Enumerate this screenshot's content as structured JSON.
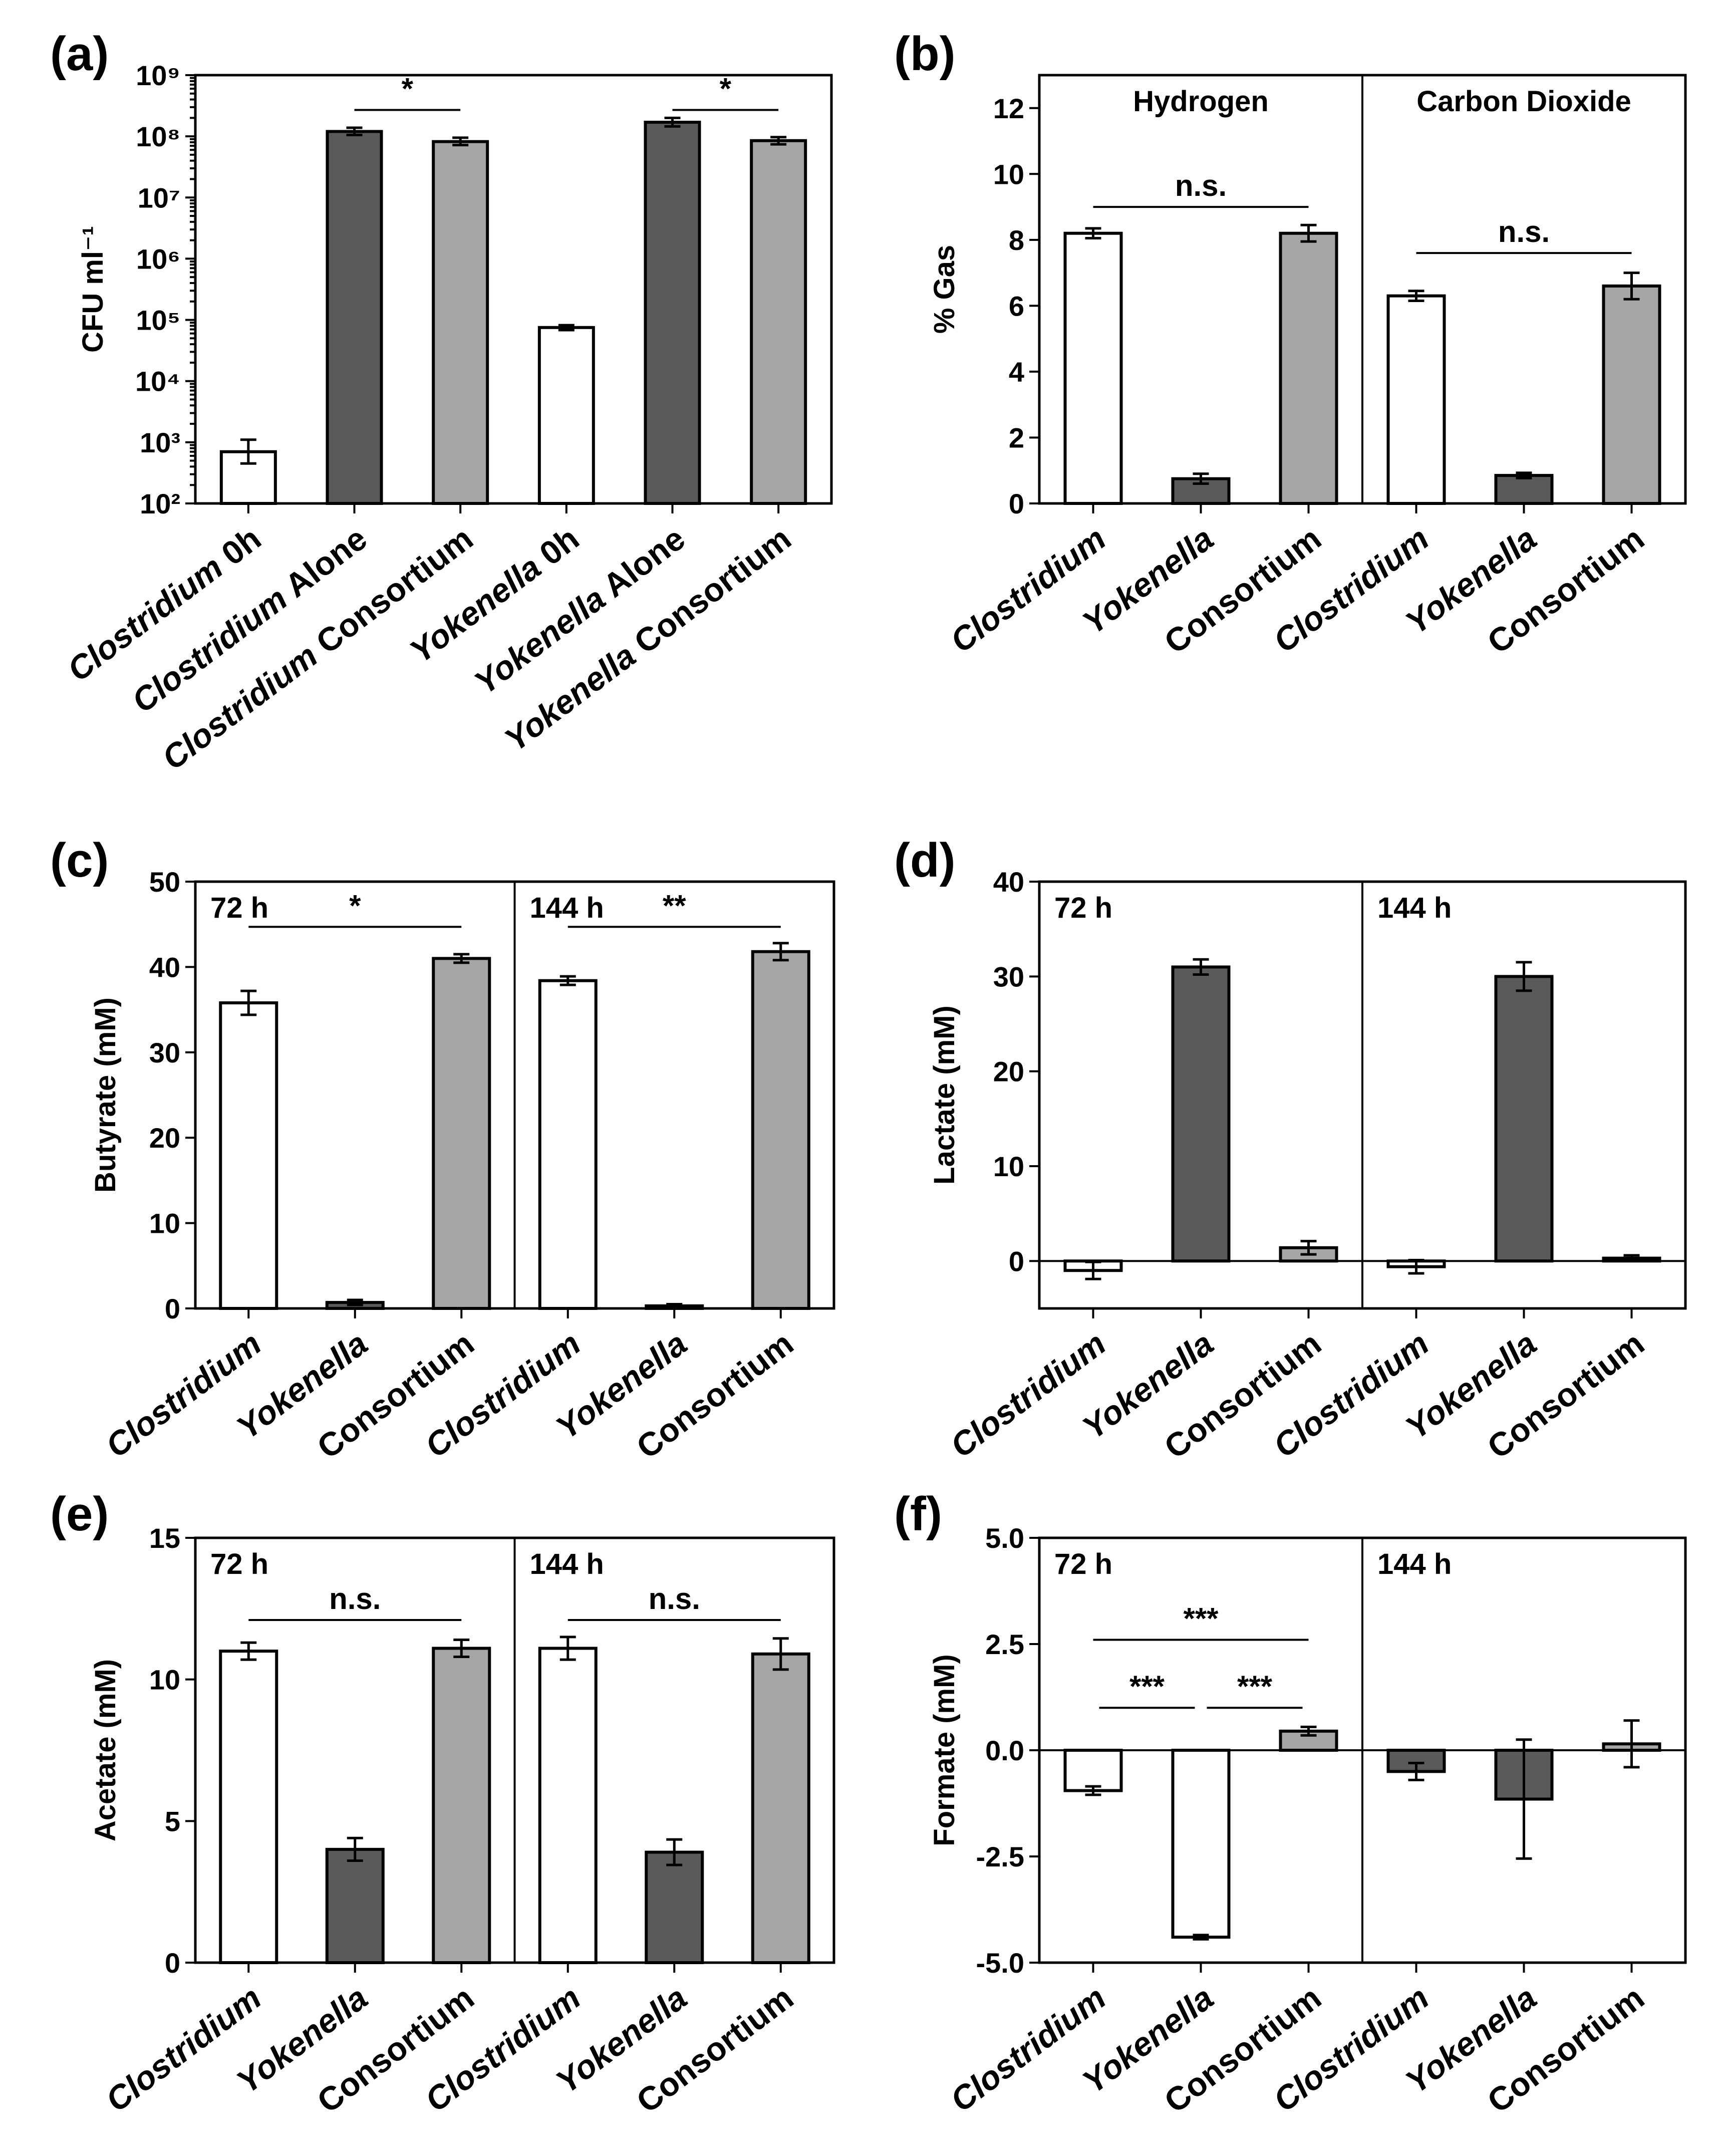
{
  "colors": {
    "white": "#ffffff",
    "dark": "#5a5a5a",
    "light": "#a6a6a6"
  },
  "chart_data": [
    {
      "id": "a",
      "panel_label": "(a)",
      "type": "bar",
      "yscale": "log",
      "ylabel": "CFU ml⁻¹",
      "ylim": [
        100,
        1000000000
      ],
      "yticks": [
        100,
        1000,
        10000,
        100000,
        1000000,
        10000000,
        100000000,
        1000000000
      ],
      "ytick_labels": [
        "10²",
        "10³",
        "10⁴",
        "10⁵",
        "10⁶",
        "10⁷",
        "10⁸",
        "10⁹"
      ],
      "groups": [
        {
          "header": "",
          "bars": [
            {
              "label": "Clostridium 0h",
              "italic_part": "Clostridium",
              "rest": " 0h",
              "value": 700,
              "err": [
                450,
                1100
              ],
              "color": "white"
            },
            {
              "label": "Clostridium Alone",
              "italic_part": "Clostridium",
              "rest": " Alone",
              "value": 120000000,
              "err": [
                105000000,
                138000000
              ],
              "color": "dark"
            },
            {
              "label": "Clostridium Consortium",
              "italic_part": "Clostridium",
              "rest": " Consortium",
              "value": 82000000,
              "err": [
                72000000,
                95000000
              ],
              "color": "light"
            },
            {
              "label": "Yokenella 0h",
              "italic_part": "Yokenella",
              "rest": " 0h",
              "value": 75000,
              "err": [
                68000,
                82000
              ],
              "color": "white"
            },
            {
              "label": "Yokenella Alone",
              "italic_part": "Yokenella",
              "rest": " Alone",
              "value": 170000000,
              "err": [
                145000000,
                200000000
              ],
              "color": "dark"
            },
            {
              "label": "Yokenella Consortium",
              "italic_part": "Yokenella",
              "rest": " Consortium",
              "value": 85000000,
              "err": [
                74000000,
                97000000
              ],
              "color": "light"
            }
          ],
          "sig": [
            {
              "from": 1,
              "to": 2,
              "y": 270000000,
              "text": "*"
            },
            {
              "from": 4,
              "to": 5,
              "y": 270000000,
              "text": "*"
            }
          ]
        }
      ]
    },
    {
      "id": "b",
      "panel_label": "(b)",
      "type": "bar",
      "ylabel": "% Gas",
      "ylim": [
        0,
        13
      ],
      "yticks": [
        0,
        2,
        4,
        6,
        8,
        10,
        12
      ],
      "groups": [
        {
          "header": "Hydrogen",
          "bars": [
            {
              "label": "Clostridium",
              "italic_part": "Clostridium",
              "rest": "",
              "value": 8.2,
              "err": 0.15,
              "color": "white"
            },
            {
              "label": "Yokenella",
              "italic_part": "Yokenella",
              "rest": "",
              "value": 0.75,
              "err": 0.15,
              "color": "dark"
            },
            {
              "label": "Consortium",
              "italic_part": "",
              "rest": "Consortium",
              "value": 8.2,
              "err": 0.25,
              "color": "light"
            }
          ],
          "sig": [
            {
              "from": 0,
              "to": 2,
              "y": 9.0,
              "text": "n.s."
            }
          ]
        },
        {
          "header": "Carbon  Dioxide",
          "bars": [
            {
              "label": "Clostridium",
              "italic_part": "Clostridium",
              "rest": "",
              "value": 6.3,
              "err": 0.15,
              "color": "white"
            },
            {
              "label": "Yokenella",
              "italic_part": "Yokenella",
              "rest": "",
              "value": 0.85,
              "err": 0.08,
              "color": "dark"
            },
            {
              "label": "Consortium",
              "italic_part": "",
              "rest": "Consortium",
              "value": 6.6,
              "err": 0.4,
              "color": "light"
            }
          ],
          "sig": [
            {
              "from": 0,
              "to": 2,
              "y": 7.6,
              "text": "n.s."
            }
          ]
        }
      ]
    },
    {
      "id": "c",
      "panel_label": "(c)",
      "type": "bar",
      "ylabel": "Butyrate (mM)",
      "ylim": [
        0,
        50
      ],
      "yticks": [
        0,
        10,
        20,
        30,
        40,
        50
      ],
      "groups": [
        {
          "header": "72 h",
          "bars": [
            {
              "label": "Clostridium",
              "italic_part": "Clostridium",
              "rest": "",
              "value": 35.8,
              "err": 1.4,
              "color": "white"
            },
            {
              "label": "Yokenella",
              "italic_part": "Yokenella",
              "rest": "",
              "value": 0.7,
              "err": 0.3,
              "color": "dark"
            },
            {
              "label": "Consortium",
              "italic_part": "",
              "rest": "Consortium",
              "value": 41.0,
              "err": 0.5,
              "color": "light"
            }
          ],
          "sig": [
            {
              "from": 0,
              "to": 2,
              "y": 44.7,
              "text": "*"
            }
          ]
        },
        {
          "header": "144 h",
          "bars": [
            {
              "label": "Clostridium",
              "italic_part": "Clostridium",
              "rest": "",
              "value": 38.4,
              "err": 0.5,
              "color": "white"
            },
            {
              "label": "Yokenella",
              "italic_part": "Yokenella",
              "rest": "",
              "value": 0.3,
              "err": 0.2,
              "color": "dark"
            },
            {
              "label": "Consortium",
              "italic_part": "",
              "rest": "Consortium",
              "value": 41.8,
              "err": 1.0,
              "color": "light"
            }
          ],
          "sig": [
            {
              "from": 0,
              "to": 2,
              "y": 44.7,
              "text": "**"
            }
          ]
        }
      ]
    },
    {
      "id": "d",
      "panel_label": "(d)",
      "type": "bar",
      "ylabel": "Lactate (mM)",
      "ylim": [
        -5,
        40
      ],
      "yticks": [
        0,
        10,
        20,
        30,
        40
      ],
      "zero_line": true,
      "groups": [
        {
          "header": "72 h",
          "bars": [
            {
              "label": "Clostridium",
              "italic_part": "Clostridium",
              "rest": "",
              "value": -1.0,
              "err": 0.9,
              "color": "white"
            },
            {
              "label": "Yokenella",
              "italic_part": "Yokenella",
              "rest": "",
              "value": 31.0,
              "err": 0.8,
              "color": "dark"
            },
            {
              "label": "Consortium",
              "italic_part": "",
              "rest": "Consortium",
              "value": 1.4,
              "err": 0.7,
              "color": "light"
            }
          ],
          "sig": []
        },
        {
          "header": "144 h",
          "bars": [
            {
              "label": "Clostridium",
              "italic_part": "Clostridium",
              "rest": "",
              "value": -0.6,
              "err": 0.7,
              "color": "white"
            },
            {
              "label": "Yokenella",
              "italic_part": "Yokenella",
              "rest": "",
              "value": 30.0,
              "err": 1.5,
              "color": "dark"
            },
            {
              "label": "Consortium",
              "italic_part": "",
              "rest": "Consortium",
              "value": 0.3,
              "err": 0.3,
              "color": "light"
            }
          ],
          "sig": []
        }
      ]
    },
    {
      "id": "e",
      "panel_label": "(e)",
      "type": "bar",
      "ylabel": "Acetate (mM)",
      "ylim": [
        0,
        15
      ],
      "yticks": [
        0,
        5,
        10,
        15
      ],
      "groups": [
        {
          "header": "72 h",
          "bars": [
            {
              "label": "Clostridium",
              "italic_part": "Clostridium",
              "rest": "",
              "value": 11.0,
              "err": 0.3,
              "color": "white"
            },
            {
              "label": "Yokenella",
              "italic_part": "Yokenella",
              "rest": "",
              "value": 4.0,
              "err": 0.4,
              "color": "dark"
            },
            {
              "label": "Consortium",
              "italic_part": "",
              "rest": "Consortium",
              "value": 11.1,
              "err": 0.3,
              "color": "light"
            }
          ],
          "sig": [
            {
              "from": 0,
              "to": 2,
              "y": 12.1,
              "text": "n.s."
            }
          ]
        },
        {
          "header": "144 h",
          "bars": [
            {
              "label": "Clostridium",
              "italic_part": "Clostridium",
              "rest": "",
              "value": 11.1,
              "err": 0.4,
              "color": "white"
            },
            {
              "label": "Yokenella",
              "italic_part": "Yokenella",
              "rest": "",
              "value": 3.9,
              "err": 0.45,
              "color": "dark"
            },
            {
              "label": "Consortium",
              "italic_part": "",
              "rest": "Consortium",
              "value": 10.9,
              "err": 0.55,
              "color": "light"
            }
          ],
          "sig": [
            {
              "from": 0,
              "to": 2,
              "y": 12.1,
              "text": "n.s."
            }
          ]
        }
      ]
    },
    {
      "id": "f",
      "panel_label": "(f)",
      "type": "bar",
      "ylabel": "Formate (mM)",
      "ylim": [
        -5,
        5
      ],
      "yticks": [
        -5,
        -2.5,
        0,
        2.5,
        5
      ],
      "ytick_labels": [
        "-5.0",
        "-2.5",
        "0.0",
        "2.5",
        "5.0"
      ],
      "zero_line": true,
      "groups": [
        {
          "header": "72 h",
          "bars": [
            {
              "label": "Clostridium",
              "italic_part": "Clostridium",
              "rest": "",
              "value": -0.95,
              "err": 0.1,
              "color": "white"
            },
            {
              "label": "Yokenella",
              "italic_part": "Yokenella",
              "rest": "",
              "value": -4.4,
              "err": 0.05,
              "color": "white"
            },
            {
              "label": "Consortium",
              "italic_part": "",
              "rest": "Consortium",
              "value": 0.45,
              "err": 0.1,
              "color": "light"
            }
          ],
          "sig": [
            {
              "from": 0,
              "to": 2,
              "y": 2.6,
              "text": "***"
            },
            {
              "from": 0,
              "to": 1,
              "y": 1.0,
              "text": "***"
            },
            {
              "from": 1,
              "to": 2,
              "y": 1.0,
              "text": "***"
            }
          ]
        },
        {
          "header": "144 h",
          "bars": [
            {
              "label": "Clostridium",
              "italic_part": "Clostridium",
              "rest": "",
              "value": -0.5,
              "err": 0.2,
              "color": "dark"
            },
            {
              "label": "Yokenella",
              "italic_part": "Yokenella",
              "rest": "",
              "value": -1.15,
              "err": 1.4,
              "color": "dark"
            },
            {
              "label": "Consortium",
              "italic_part": "",
              "rest": "Consortium",
              "value": 0.15,
              "err": 0.55,
              "color": "light"
            }
          ],
          "sig": []
        }
      ]
    }
  ]
}
